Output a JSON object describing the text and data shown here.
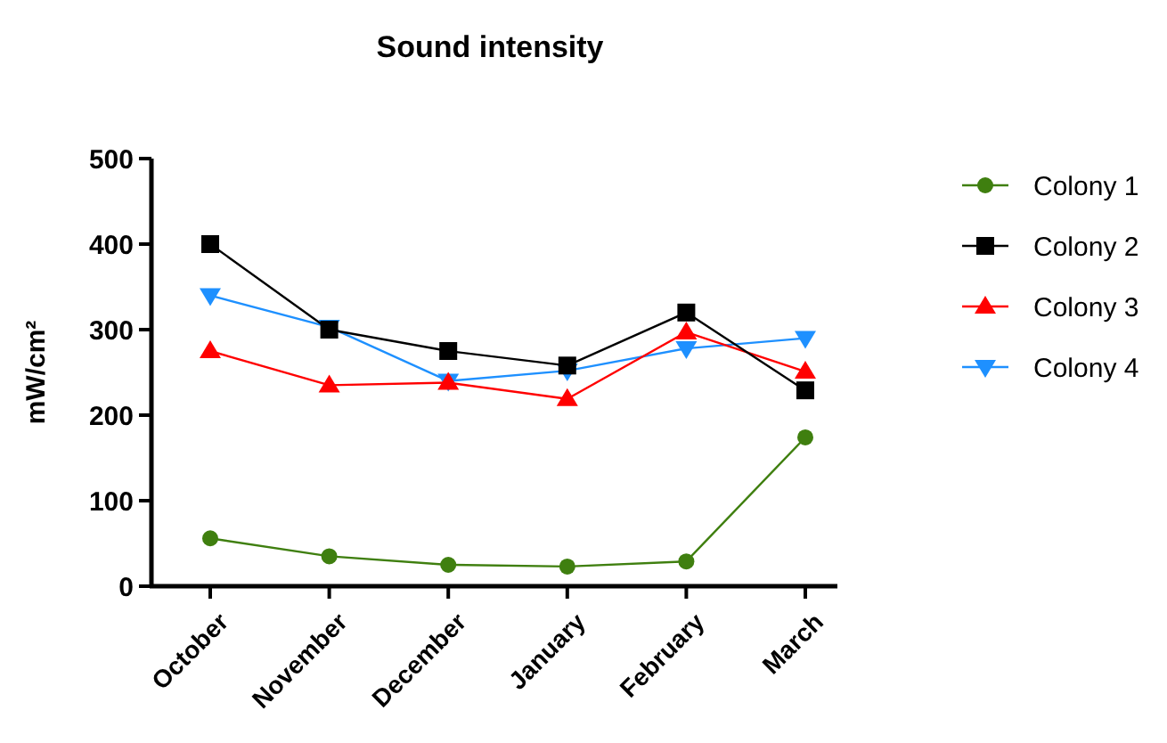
{
  "chart_data": {
    "type": "line",
    "title": "Sound intensity",
    "ylabel": "mW/cm²",
    "categories": [
      "October",
      "November",
      "December",
      "January",
      "February",
      "March"
    ],
    "ylim": [
      0,
      500
    ],
    "yticks": [
      0,
      100,
      200,
      300,
      400,
      500
    ],
    "grid": false,
    "legend": "right",
    "series": [
      {
        "name": "Colony 1",
        "color": "#3f7f0f",
        "marker": "circle",
        "values": [
          56,
          35,
          25,
          23,
          29,
          174
        ]
      },
      {
        "name": "Colony 2",
        "color": "#000000",
        "marker": "square",
        "values": [
          400,
          300,
          275,
          258,
          320,
          229
        ]
      },
      {
        "name": "Colony 3",
        "color": "#ff0000",
        "marker": "triangle",
        "values": [
          275,
          235,
          238,
          219,
          297,
          251
        ]
      },
      {
        "name": "Colony 4",
        "color": "#1e90ff",
        "marker": "triangle-down",
        "values": [
          340,
          303,
          240,
          252,
          278,
          290
        ]
      }
    ]
  }
}
